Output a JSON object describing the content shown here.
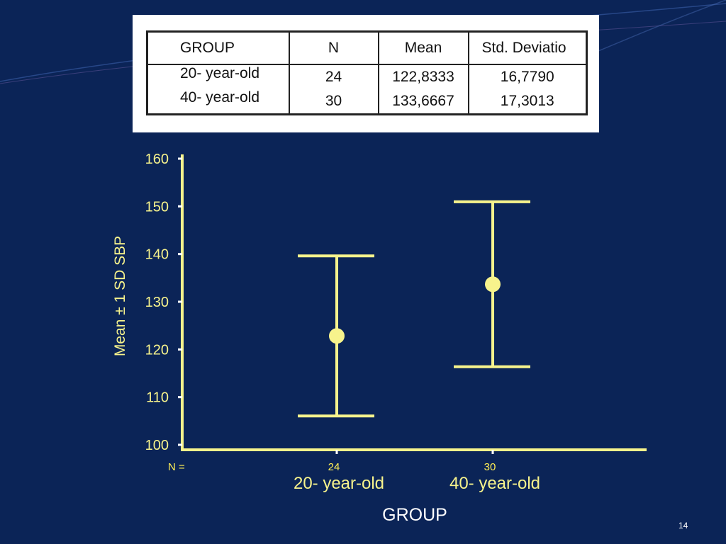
{
  "slide": {
    "page_number": "14"
  },
  "colors": {
    "background": "#0b2457",
    "chart": "#f7f38c",
    "n_labels": "#ffee55",
    "text_white": "#ffffff"
  },
  "table": {
    "headers": [
      "GROUP",
      "N",
      "Mean",
      "Std. Deviatio"
    ],
    "rows": [
      [
        "20- year-old",
        "24",
        "122,8333",
        "16,7790"
      ],
      [
        "40- year-old",
        "30",
        "133,6667",
        "17,3013"
      ]
    ]
  },
  "chart_data": {
    "type": "scatter",
    "title": "",
    "xlabel": "GROUP",
    "ylabel": "Mean ± 1 SD SBP",
    "ylim": [
      100,
      160
    ],
    "yticks": [
      100,
      110,
      120,
      130,
      140,
      150,
      160
    ],
    "n_prefix": "N =",
    "categories": [
      "20- year-old",
      "40- year-old"
    ],
    "n": [
      "24",
      "30"
    ],
    "mean": [
      122.8333,
      133.6667
    ],
    "lower": [
      106.0543,
      116.3654
    ],
    "upper": [
      139.6123,
      150.968
    ],
    "grid": false,
    "legend": "none"
  }
}
